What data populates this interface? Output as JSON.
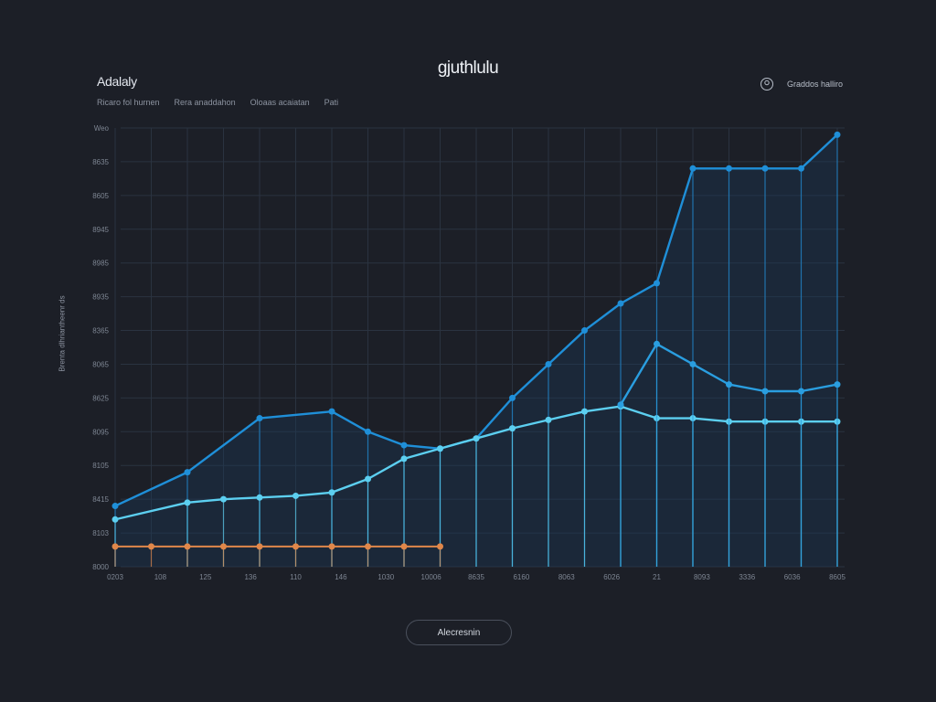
{
  "header": {
    "brand": "Adalaly",
    "title": "gjuthlulu",
    "nav": [
      "Ricaro fol hurnen",
      "Rera anaddahon",
      "Oloaas acaiatan",
      "Pati"
    ],
    "user_name": "Graddos halliro"
  },
  "button": {
    "label": "Alecresnin"
  },
  "colors": {
    "background": "#1c1f27",
    "grid": "#2a3340",
    "series_blue": "#1f8fd8",
    "series_light": "#5ccff0",
    "series_orange": "#e0874a"
  },
  "chart_data": {
    "type": "line",
    "title": "gjuthlulu",
    "ylabel": "Brenta dlhriantheenr ds",
    "xlabel": "",
    "y_ticks": [
      "Weo",
      "8635",
      "8605",
      "8945",
      "8985",
      "8935",
      "8365",
      "8065",
      "8625",
      "8095",
      "8105",
      "8415",
      "8103",
      "8000"
    ],
    "x_ticks": [
      "0203",
      "108",
      "125",
      "136",
      "110",
      "146",
      "1030",
      "10006",
      "8635",
      "6160",
      "8063",
      "6026",
      "21",
      "8093",
      "3336",
      "6036",
      "8605"
    ],
    "ylim": [
      0,
      13
    ],
    "x": [
      0,
      1,
      2,
      3,
      4,
      5,
      6,
      7,
      8,
      9,
      10,
      11,
      12,
      13,
      14,
      15,
      16,
      17,
      18,
      19,
      20
    ],
    "grid": true,
    "series": [
      {
        "x": [
          0,
          2,
          4,
          6,
          7,
          8,
          9,
          10,
          11,
          12,
          13,
          14,
          15,
          16,
          17,
          18,
          19,
          20
        ],
        "values": [
          1.8,
          2.8,
          4.4,
          4.6,
          4.0,
          3.6,
          3.5,
          3.8,
          5.0,
          6.0,
          7.0,
          7.8,
          8.4,
          11.8,
          11.8,
          11.8,
          11.8,
          12.8
        ]
      },
      {
        "x": [
          0,
          2,
          3,
          4,
          5,
          6,
          7,
          8,
          9,
          10,
          11,
          12,
          13,
          14,
          15,
          16,
          17,
          18,
          19,
          20
        ],
        "values": [
          1.4,
          1.9,
          2.0,
          2.05,
          2.1,
          2.2,
          2.6,
          3.2,
          3.5,
          3.8,
          4.1,
          4.35,
          4.6,
          4.75,
          4.4,
          4.4,
          4.3,
          4.3,
          4.3,
          4.3
        ]
      },
      {
        "x": [
          14,
          15,
          16,
          17,
          18,
          19,
          20
        ],
        "values": [
          4.8,
          6.6,
          6.0,
          5.4,
          5.2,
          5.2,
          5.4
        ]
      },
      {
        "x": [
          0,
          1,
          2,
          3,
          4,
          5,
          6,
          7,
          8,
          9
        ],
        "values": [
          0.6,
          0.6,
          0.6,
          0.6,
          0.6,
          0.6,
          0.6,
          0.6,
          0.6,
          0.6
        ]
      }
    ]
  }
}
